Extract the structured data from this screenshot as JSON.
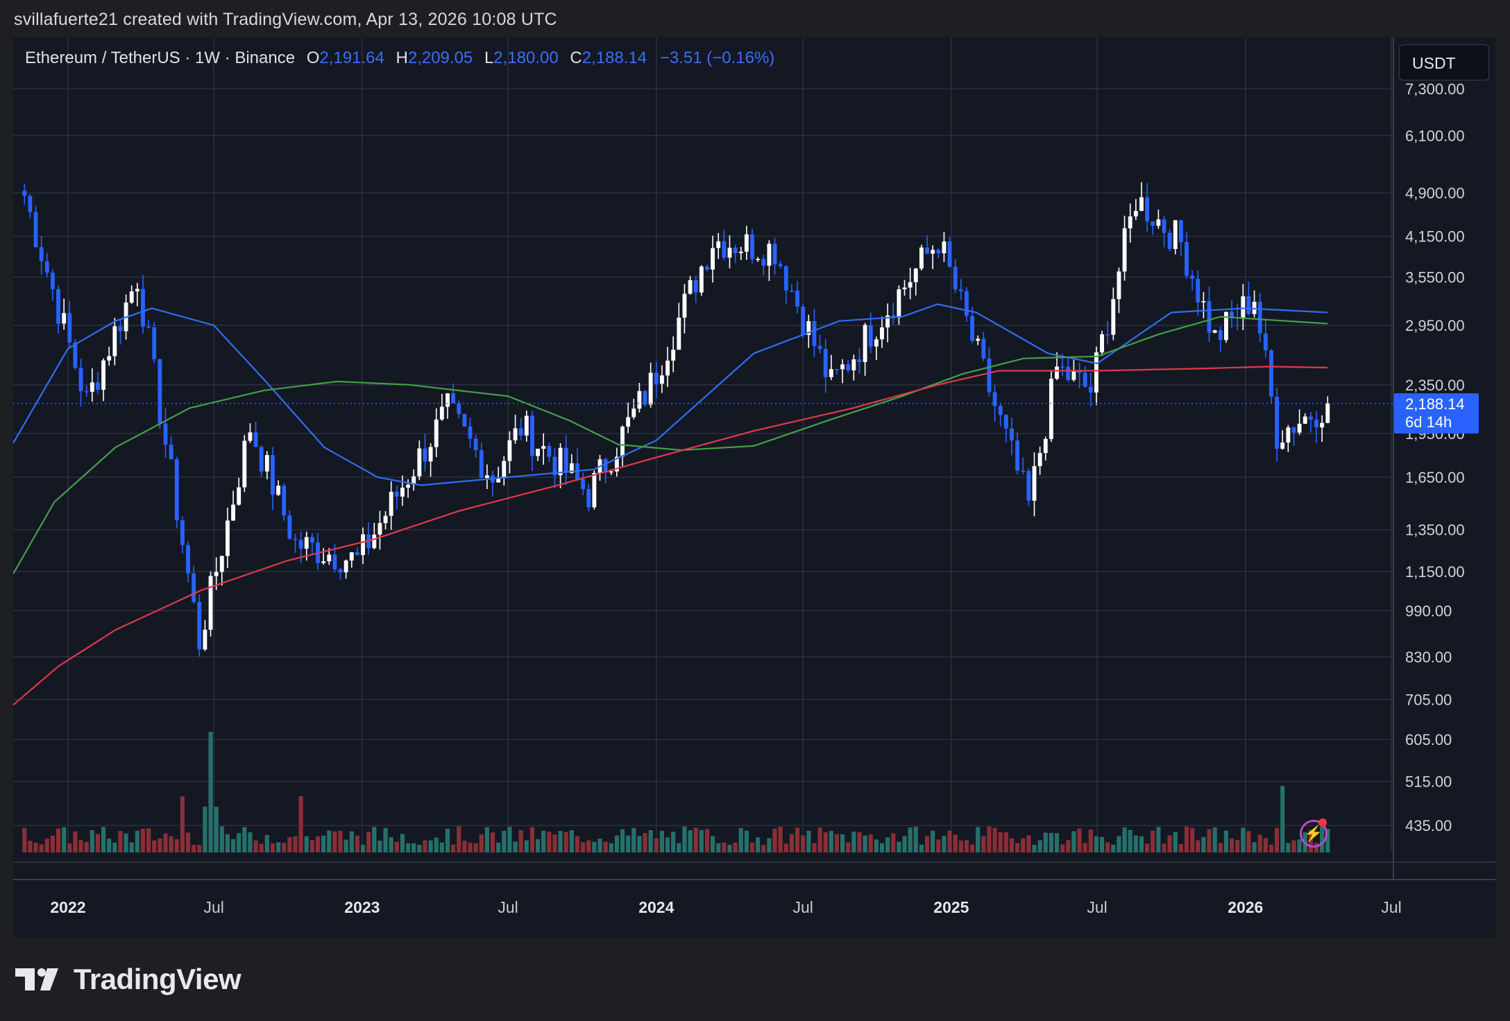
{
  "header": {
    "text": "svillafuerte21 created with TradingView.com, Apr 13, 2026 10:08 UTC"
  },
  "legend": {
    "symbol": "Ethereum / TetherUS · 1W · Binance",
    "o_label": "O",
    "o": "2,191.64",
    "h_label": "H",
    "h": "2,209.05",
    "l_label": "L",
    "l": "2,180.00",
    "c_label": "C",
    "c": "2,188.14",
    "change": "−3.51 (−0.16%)"
  },
  "currency_button": "USDT",
  "last_price": {
    "value": "2,188.14",
    "countdown": "6d 14h"
  },
  "brand": "TradingView",
  "colors": {
    "up": "#ffffff",
    "down": "#2962ff",
    "vol_up": "#26706b",
    "vol_down": "#8b2e36",
    "ma_blue": "#2f6ef2",
    "ma_green": "#43a047",
    "ma_red": "#e0394a",
    "grid": "#2b3040",
    "bg": "#141823"
  },
  "chart_data": {
    "type": "candlestick",
    "symbol": "ETH/USDT",
    "interval": "1W",
    "x_axis": {
      "ticks": [
        {
          "label": "2022",
          "date": "2022-01-01",
          "bold": true
        },
        {
          "label": "Jul",
          "date": "2022-07-01"
        },
        {
          "label": "2023",
          "date": "2023-01-01",
          "bold": true
        },
        {
          "label": "Jul",
          "date": "2023-07-01"
        },
        {
          "label": "2024",
          "date": "2024-01-01",
          "bold": true
        },
        {
          "label": "Jul",
          "date": "2024-07-01"
        },
        {
          "label": "2025",
          "date": "2025-01-01",
          "bold": true
        },
        {
          "label": "Jul",
          "date": "2025-07-01"
        },
        {
          "label": "2026",
          "date": "2026-01-01",
          "bold": true
        },
        {
          "label": "Jul",
          "date": "2026-07-01"
        }
      ],
      "range": [
        "2021-10-25",
        "2026-07-01"
      ]
    },
    "y_axis": {
      "scale": "log",
      "ticks": [
        7300,
        6100,
        4900,
        4150,
        3550,
        2950,
        2350,
        1950,
        1650,
        1350,
        1150,
        990,
        830,
        705,
        605,
        515,
        435
      ],
      "tick_labels": [
        "7,300.00",
        "6,100.00",
        "4,900.00",
        "4,150.00",
        "3,550.00",
        "2,950.00",
        "2,350.00",
        "1,950.00",
        "1,650.00",
        "1,350.00",
        "1,150.00",
        "990.00",
        "830.00",
        "705.00",
        "605.00",
        "515.00",
        "435.00"
      ]
    },
    "key_points": [
      {
        "date": "2021-11-08",
        "price": 4850
      },
      {
        "date": "2022-01-24",
        "price": 2200
      },
      {
        "date": "2022-03-28",
        "price": 3550
      },
      {
        "date": "2022-06-13",
        "price": 880
      },
      {
        "date": "2022-08-15",
        "price": 2000
      },
      {
        "date": "2022-10-10",
        "price": 1280
      },
      {
        "date": "2022-12-26",
        "price": 1200
      },
      {
        "date": "2023-04-17",
        "price": 2130
      },
      {
        "date": "2023-06-12",
        "price": 1650
      },
      {
        "date": "2023-07-17",
        "price": 2000
      },
      {
        "date": "2023-10-09",
        "price": 1550
      },
      {
        "date": "2023-12-25",
        "price": 2350
      },
      {
        "date": "2024-03-11",
        "price": 4090
      },
      {
        "date": "2024-05-27",
        "price": 3950
      },
      {
        "date": "2024-08-05",
        "price": 2350
      },
      {
        "date": "2024-12-16",
        "price": 4100
      },
      {
        "date": "2025-04-07",
        "price": 1480
      },
      {
        "date": "2025-05-12",
        "price": 2500
      },
      {
        "date": "2025-06-23",
        "price": 2300
      },
      {
        "date": "2025-08-18",
        "price": 4800
      },
      {
        "date": "2025-10-13",
        "price": 4050
      },
      {
        "date": "2025-11-24",
        "price": 2800
      },
      {
        "date": "2026-01-12",
        "price": 3300
      },
      {
        "date": "2026-02-09",
        "price": 1950
      },
      {
        "date": "2026-04-13",
        "price": 2188.14
      }
    ],
    "series": [
      {
        "name": "",
        "color": "#2f6ef2",
        "points": [
          {
            "date": "2021-10-25",
            "price": 1880
          },
          {
            "date": "2022-01-01",
            "price": 2700
          },
          {
            "date": "2022-03-01",
            "price": 3000
          },
          {
            "date": "2022-04-15",
            "price": 3150
          },
          {
            "date": "2022-07-01",
            "price": 2950
          },
          {
            "date": "2022-09-01",
            "price": 2400
          },
          {
            "date": "2022-11-15",
            "price": 1850
          },
          {
            "date": "2023-01-20",
            "price": 1650
          },
          {
            "date": "2023-03-15",
            "price": 1600
          },
          {
            "date": "2023-07-01",
            "price": 1650
          },
          {
            "date": "2023-10-15",
            "price": 1700
          },
          {
            "date": "2024-01-01",
            "price": 1900
          },
          {
            "date": "2024-05-01",
            "price": 2650
          },
          {
            "date": "2024-08-15",
            "price": 3000
          },
          {
            "date": "2024-11-01",
            "price": 3050
          },
          {
            "date": "2024-12-15",
            "price": 3200
          },
          {
            "date": "2025-02-01",
            "price": 3100
          },
          {
            "date": "2025-05-01",
            "price": 2650
          },
          {
            "date": "2025-07-01",
            "price": 2550
          },
          {
            "date": "2025-10-01",
            "price": 3100
          },
          {
            "date": "2026-01-01",
            "price": 3150
          },
          {
            "date": "2026-04-13",
            "price": 3100
          }
        ]
      },
      {
        "name": "",
        "color": "#43a047",
        "points": [
          {
            "date": "2021-10-25",
            "price": 1140
          },
          {
            "date": "2021-12-15",
            "price": 1500
          },
          {
            "date": "2022-03-01",
            "price": 1850
          },
          {
            "date": "2022-06-01",
            "price": 2150
          },
          {
            "date": "2022-09-01",
            "price": 2300
          },
          {
            "date": "2022-12-01",
            "price": 2380
          },
          {
            "date": "2023-03-01",
            "price": 2350
          },
          {
            "date": "2023-07-01",
            "price": 2250
          },
          {
            "date": "2023-09-15",
            "price": 2050
          },
          {
            "date": "2023-11-15",
            "price": 1870
          },
          {
            "date": "2024-02-01",
            "price": 1830
          },
          {
            "date": "2024-05-01",
            "price": 1860
          },
          {
            "date": "2024-08-01",
            "price": 2050
          },
          {
            "date": "2024-11-01",
            "price": 2250
          },
          {
            "date": "2025-01-15",
            "price": 2450
          },
          {
            "date": "2025-04-01",
            "price": 2600
          },
          {
            "date": "2025-07-01",
            "price": 2620
          },
          {
            "date": "2025-09-15",
            "price": 2850
          },
          {
            "date": "2025-12-01",
            "price": 3050
          },
          {
            "date": "2026-04-13",
            "price": 2970
          }
        ]
      },
      {
        "name": "",
        "color": "#e0394a",
        "points": [
          {
            "date": "2021-10-25",
            "price": 690
          },
          {
            "date": "2021-12-20",
            "price": 800
          },
          {
            "date": "2022-03-01",
            "price": 920
          },
          {
            "date": "2022-06-15",
            "price": 1070
          },
          {
            "date": "2022-10-01",
            "price": 1200
          },
          {
            "date": "2023-01-15",
            "price": 1300
          },
          {
            "date": "2023-05-01",
            "price": 1450
          },
          {
            "date": "2023-09-01",
            "price": 1600
          },
          {
            "date": "2024-01-01",
            "price": 1780
          },
          {
            "date": "2024-05-01",
            "price": 1970
          },
          {
            "date": "2024-09-01",
            "price": 2150
          },
          {
            "date": "2024-12-15",
            "price": 2350
          },
          {
            "date": "2025-03-01",
            "price": 2480
          },
          {
            "date": "2025-07-01",
            "price": 2480
          },
          {
            "date": "2025-11-01",
            "price": 2500
          },
          {
            "date": "2026-02-01",
            "price": 2520
          },
          {
            "date": "2026-04-13",
            "price": 2510
          }
        ]
      }
    ]
  }
}
